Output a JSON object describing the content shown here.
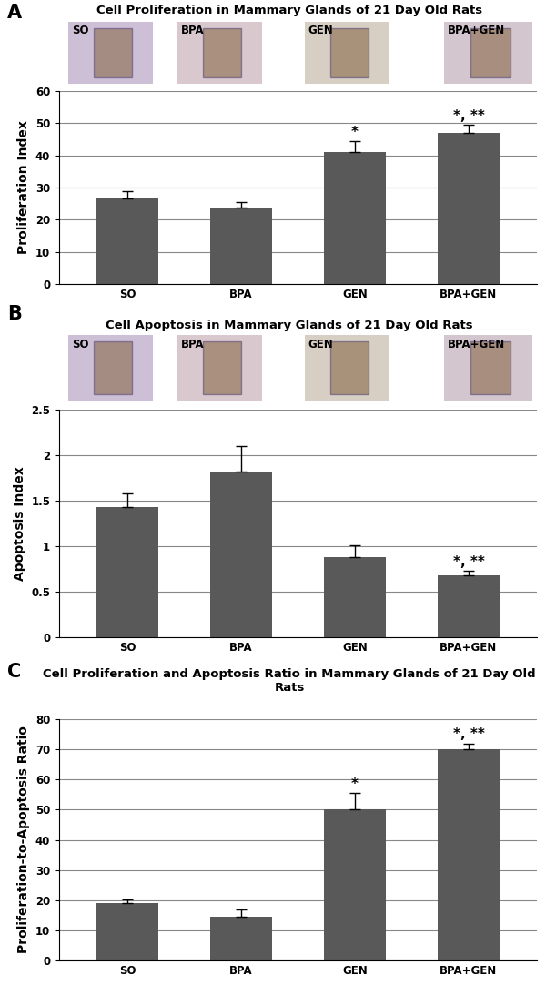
{
  "chart_data": [
    {
      "type": "bar",
      "panel": "A",
      "title": "Cell Proliferation in Mammary Glands of 21 Day Old Rats",
      "image_labels": [
        "SO",
        "BPA",
        "GEN",
        "BPA+GEN"
      ],
      "categories": [
        "SO",
        "BPA",
        "GEN",
        "BPA+GEN"
      ],
      "values": [
        26.5,
        23.8,
        41,
        47
      ],
      "errors": [
        2.3,
        1.7,
        3.5,
        2.5
      ],
      "annotations": [
        null,
        null,
        "*",
        "*, **"
      ],
      "ylabel": "Proliferation Index",
      "color": "#595959",
      "ylim": [
        0,
        60
      ],
      "yticks": [
        0,
        10,
        20,
        30,
        40,
        50,
        60
      ],
      "grid": true
    },
    {
      "type": "bar",
      "panel": "B",
      "title": "Cell Apoptosis in Mammary Glands of 21 Day Old Rats",
      "image_labels": [
        "SO",
        "BPA",
        "GEN",
        "BPA+GEN"
      ],
      "categories": [
        "SO",
        "BPA",
        "GEN",
        "BPA+GEN"
      ],
      "values": [
        1.43,
        1.82,
        0.88,
        0.68
      ],
      "errors": [
        0.15,
        0.28,
        0.13,
        0.05
      ],
      "annotations": [
        null,
        null,
        null,
        "*, **"
      ],
      "ylabel": "Apoptosis Index",
      "color": "#595959",
      "ylim": [
        0,
        2.5
      ],
      "yticks": [
        0,
        0.5,
        1,
        1.5,
        2,
        2.5
      ],
      "grid": true
    },
    {
      "type": "bar",
      "panel": "C",
      "title": "Cell Proliferation and Apoptosis Ratio in Mammary Glands of 21 Day Old Rats",
      "categories": [
        "SO",
        "BPA",
        "GEN",
        "BPA+GEN"
      ],
      "values": [
        19,
        14.5,
        50,
        70
      ],
      "errors": [
        1.2,
        2.3,
        5.5,
        2.0
      ],
      "annotations": [
        null,
        null,
        "*",
        "*, **"
      ],
      "ylabel": "Proliferation-to-Apoptosis Ratio",
      "color": "#595959",
      "ylim": [
        0,
        80
      ],
      "yticks": [
        0,
        10,
        20,
        30,
        40,
        50,
        60,
        70,
        80
      ],
      "grid": true
    }
  ]
}
